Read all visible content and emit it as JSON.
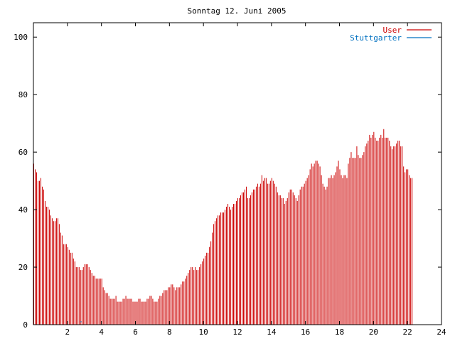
{
  "chart_data": {
    "type": "bar",
    "title": "Sonntag 12. Juni 2005",
    "xlabel": "",
    "ylabel": "",
    "xlim": [
      0,
      24
    ],
    "ylim": [
      0,
      105
    ],
    "x_ticks": [
      "2",
      "4",
      "6",
      "8",
      "10",
      "12",
      "14",
      "16",
      "18",
      "20",
      "22",
      "24"
    ],
    "y_ticks": [
      "0",
      "20",
      "40",
      "60",
      "80",
      "100"
    ],
    "grid": false,
    "legend_position": "top-right",
    "colors": {
      "user": "#cc0000",
      "stuttgarter": "#0070c0"
    },
    "series": [
      {
        "name": "User",
        "x_start_hour": 0,
        "step_hours": 0.0833333,
        "values": [
          56,
          54,
          53,
          50,
          50,
          51,
          48,
          47,
          43,
          41,
          41,
          40,
          38,
          37,
          36,
          36,
          37,
          37,
          35,
          32,
          31,
          28,
          28,
          28,
          27,
          26,
          25,
          25,
          23,
          22,
          20,
          20,
          20,
          19,
          19,
          20,
          21,
          21,
          21,
          20,
          19,
          18,
          17,
          17,
          16,
          16,
          16,
          16,
          16,
          13,
          12,
          11,
          11,
          10,
          9,
          9,
          9,
          9,
          10,
          8,
          8,
          8,
          8,
          9,
          9,
          10,
          9,
          9,
          9,
          9,
          8,
          8,
          8,
          8,
          9,
          9,
          8,
          8,
          8,
          8,
          9,
          9,
          10,
          10,
          9,
          8,
          8,
          8,
          9,
          10,
          10,
          11,
          12,
          12,
          12,
          13,
          13,
          14,
          14,
          13,
          12,
          13,
          13,
          13,
          14,
          15,
          15,
          16,
          17,
          18,
          19,
          20,
          20,
          19,
          20,
          19,
          19,
          20,
          21,
          22,
          23,
          24,
          25,
          25,
          27,
          29,
          32,
          35,
          36,
          37,
          38,
          38,
          39,
          39,
          39,
          40,
          41,
          42,
          41,
          40,
          41,
          42,
          42,
          43,
          44,
          44,
          45,
          46,
          46,
          47,
          48,
          44,
          44,
          45,
          46,
          47,
          47,
          48,
          49,
          48,
          49,
          52,
          50,
          51,
          51,
          49,
          49,
          50,
          51,
          50,
          49,
          48,
          46,
          45,
          45,
          44,
          44,
          42,
          43,
          44,
          46,
          47,
          47,
          46,
          45,
          44,
          43,
          45,
          47,
          48,
          48,
          49,
          50,
          51,
          52,
          54,
          56,
          55,
          56,
          57,
          57,
          56,
          55,
          52,
          49,
          48,
          47,
          48,
          51,
          51,
          52,
          51,
          52,
          53,
          55,
          57,
          54,
          52,
          51,
          52,
          52,
          51,
          56,
          58,
          60,
          58,
          58,
          58,
          62,
          59,
          58,
          58,
          59,
          60,
          62,
          63,
          64,
          66,
          65,
          66,
          67,
          65,
          64,
          64,
          65,
          66,
          65,
          68,
          65,
          65,
          65,
          64,
          62,
          61,
          62,
          62,
          63,
          64,
          64,
          62,
          62,
          55,
          53,
          54,
          54,
          52,
          51,
          51
        ]
      },
      {
        "name": "Stuttgarter",
        "points": [
          [
            2.75,
            1
          ],
          [
            2.83,
            1
          ]
        ]
      }
    ]
  }
}
